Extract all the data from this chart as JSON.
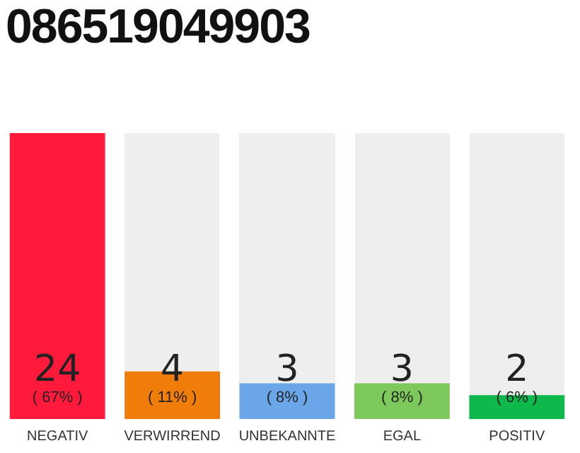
{
  "chart_data": {
    "type": "bar",
    "title": "086519049903",
    "categories": [
      "NEGATIV",
      "VERWIRREND",
      "UNBEKANNTE",
      "EGAL",
      "POSITIV"
    ],
    "values": [
      24,
      4,
      3,
      3,
      2
    ],
    "colors": [
      "#ff1a3c",
      "#f07c0a",
      "#6aa6e8",
      "#7dc95b",
      "#0eb84a"
    ],
    "value_labels": [
      "24\n( 67% )",
      "4\n( 11% )",
      "3\n( 8% )",
      "3\n( 8% )",
      "2\n( 6% )"
    ],
    "grid": false,
    "legend": false,
    "tick_labels": "x"
  }
}
